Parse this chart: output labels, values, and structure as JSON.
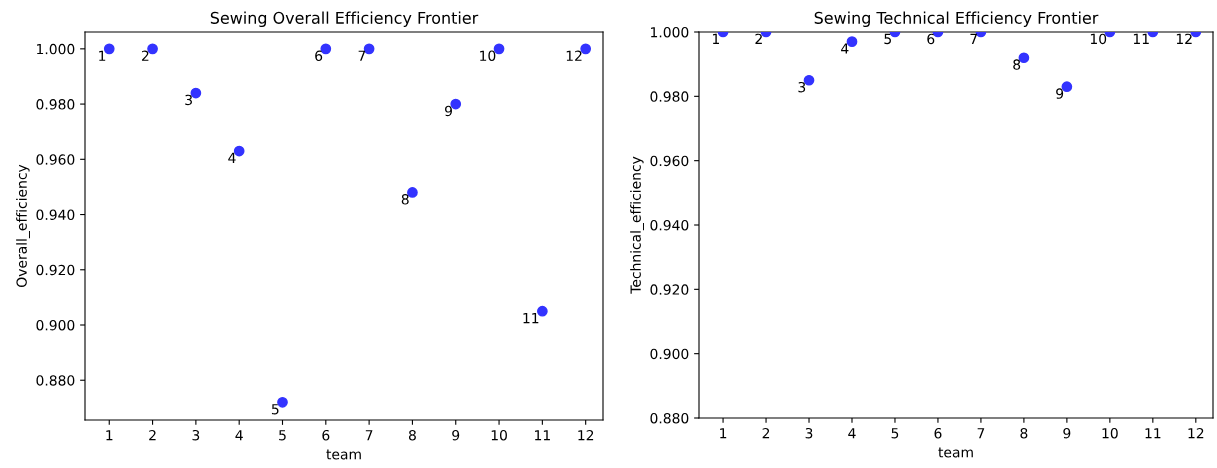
{
  "chart_data": [
    {
      "type": "scatter",
      "title": "Sewing Overall Efficiency Frontier",
      "xlabel": "team",
      "ylabel": "Overall_efficiency",
      "marker": "circle",
      "xlim": [
        0.44,
        12.4
      ],
      "xticks": [
        1,
        2,
        3,
        4,
        5,
        6,
        7,
        8,
        9,
        10,
        11,
        12
      ],
      "ylim": [
        0.8656,
        1.0061
      ],
      "yticks": [
        {
          "value": 0.88,
          "label": "0.880"
        },
        {
          "value": 0.9,
          "label": "0.900"
        },
        {
          "value": 0.92,
          "label": "0.920"
        },
        {
          "value": 0.94,
          "label": "0.940"
        },
        {
          "value": 0.96,
          "label": "0.960"
        },
        {
          "value": 0.98,
          "label": "0.980"
        },
        {
          "value": 1.0,
          "label": "1.000"
        }
      ],
      "series": [
        {
          "color": "#3333ff",
          "x": [
            1,
            2,
            3,
            4,
            5,
            6,
            7,
            8,
            9,
            10,
            11,
            12
          ],
          "values": [
            1.0,
            1.0,
            0.984,
            0.963,
            0.872,
            1.0,
            1.0,
            0.948,
            0.98,
            1.0,
            0.905,
            1.0
          ]
        }
      ],
      "annotations": [
        {
          "text": "1",
          "x": 1,
          "y": 1.0
        },
        {
          "text": "2",
          "x": 2,
          "y": 1.0
        },
        {
          "text": "3",
          "x": 3,
          "y": 0.984
        },
        {
          "text": "4",
          "x": 4,
          "y": 0.963
        },
        {
          "text": "5",
          "x": 5,
          "y": 0.872
        },
        {
          "text": "6",
          "x": 6,
          "y": 1.0
        },
        {
          "text": "7",
          "x": 7,
          "y": 1.0
        },
        {
          "text": "8",
          "x": 8,
          "y": 0.948
        },
        {
          "text": "9",
          "x": 9,
          "y": 0.98
        },
        {
          "text": "10",
          "x": 10,
          "y": 1.0
        },
        {
          "text": "11",
          "x": 11,
          "y": 0.905
        },
        {
          "text": "12",
          "x": 12,
          "y": 1.0
        }
      ]
    },
    {
      "type": "scatter",
      "title": "Sewing Technical Efficiency Frontier",
      "xlabel": "team",
      "ylabel": "Technical_efficiency",
      "marker": "circle",
      "xlim": [
        0.44,
        12.4
      ],
      "xticks": [
        1,
        2,
        3,
        4,
        5,
        6,
        7,
        8,
        9,
        10,
        11,
        12
      ],
      "ylim": [
        0.88,
        1.0
      ],
      "yticks": [
        {
          "value": 0.88,
          "label": "0.880"
        },
        {
          "value": 0.9,
          "label": "0.900"
        },
        {
          "value": 0.92,
          "label": "0.920"
        },
        {
          "value": 0.94,
          "label": "0.940"
        },
        {
          "value": 0.96,
          "label": "0.960"
        },
        {
          "value": 0.98,
          "label": "0.980"
        },
        {
          "value": 1.0,
          "label": "1.000"
        }
      ],
      "series": [
        {
          "color": "#3333ff",
          "x": [
            1,
            2,
            3,
            4,
            5,
            6,
            7,
            8,
            9,
            10,
            11,
            12
          ],
          "values": [
            1.0,
            1.0,
            0.985,
            0.997,
            1.0,
            1.0,
            1.0,
            0.992,
            0.983,
            1.0,
            1.0,
            1.0
          ]
        }
      ],
      "annotations": [
        {
          "text": "1",
          "x": 1,
          "y": 1.0
        },
        {
          "text": "2",
          "x": 2,
          "y": 1.0
        },
        {
          "text": "3",
          "x": 3,
          "y": 0.985
        },
        {
          "text": "4",
          "x": 4,
          "y": 0.997
        },
        {
          "text": "5",
          "x": 5,
          "y": 1.0
        },
        {
          "text": "6",
          "x": 6,
          "y": 1.0
        },
        {
          "text": "7",
          "x": 7,
          "y": 1.0
        },
        {
          "text": "8",
          "x": 8,
          "y": 0.992
        },
        {
          "text": "9",
          "x": 9,
          "y": 0.983
        },
        {
          "text": "10",
          "x": 10,
          "y": 1.0
        },
        {
          "text": "11",
          "x": 11,
          "y": 1.0
        },
        {
          "text": "12",
          "x": 12,
          "y": 1.0
        }
      ]
    }
  ]
}
